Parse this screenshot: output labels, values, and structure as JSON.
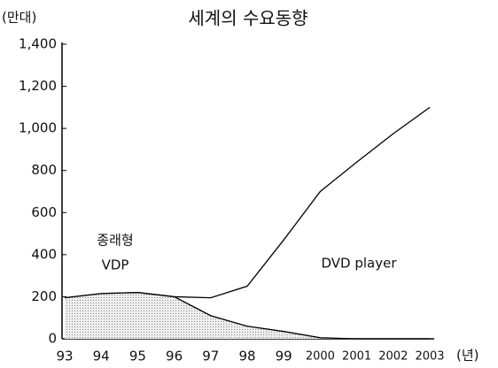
{
  "chart_data": {
    "type": "line",
    "title": "세계의 수요동향",
    "y_label": "(만대)",
    "x_label": "(년)",
    "categories": [
      "93",
      "94",
      "95",
      "96",
      "97",
      "98",
      "99",
      "2000",
      "2001",
      "2002",
      "2003"
    ],
    "series": [
      {
        "color": "#000000",
        "values": [
          195,
          215,
          220,
          200,
          195,
          250,
          470,
          700,
          840,
          975,
          1100
        ]
      },
      {
        "color": "#cccccc",
        "values": [
          195,
          215,
          220,
          200,
          110,
          60,
          35,
          5,
          0,
          0,
          0
        ]
      }
    ],
    "annotations": [
      "종래형",
      "VDP",
      "DVD player"
    ],
    "ylim": [
      0,
      1400
    ],
    "yticks": [
      0,
      200,
      400,
      600,
      800,
      {
        "value": 1000,
        "label": "1,000"
      },
      {
        "value": 1200,
        "label": "1,200"
      },
      {
        "value": 1400,
        "label": "1,400"
      }
    ]
  }
}
